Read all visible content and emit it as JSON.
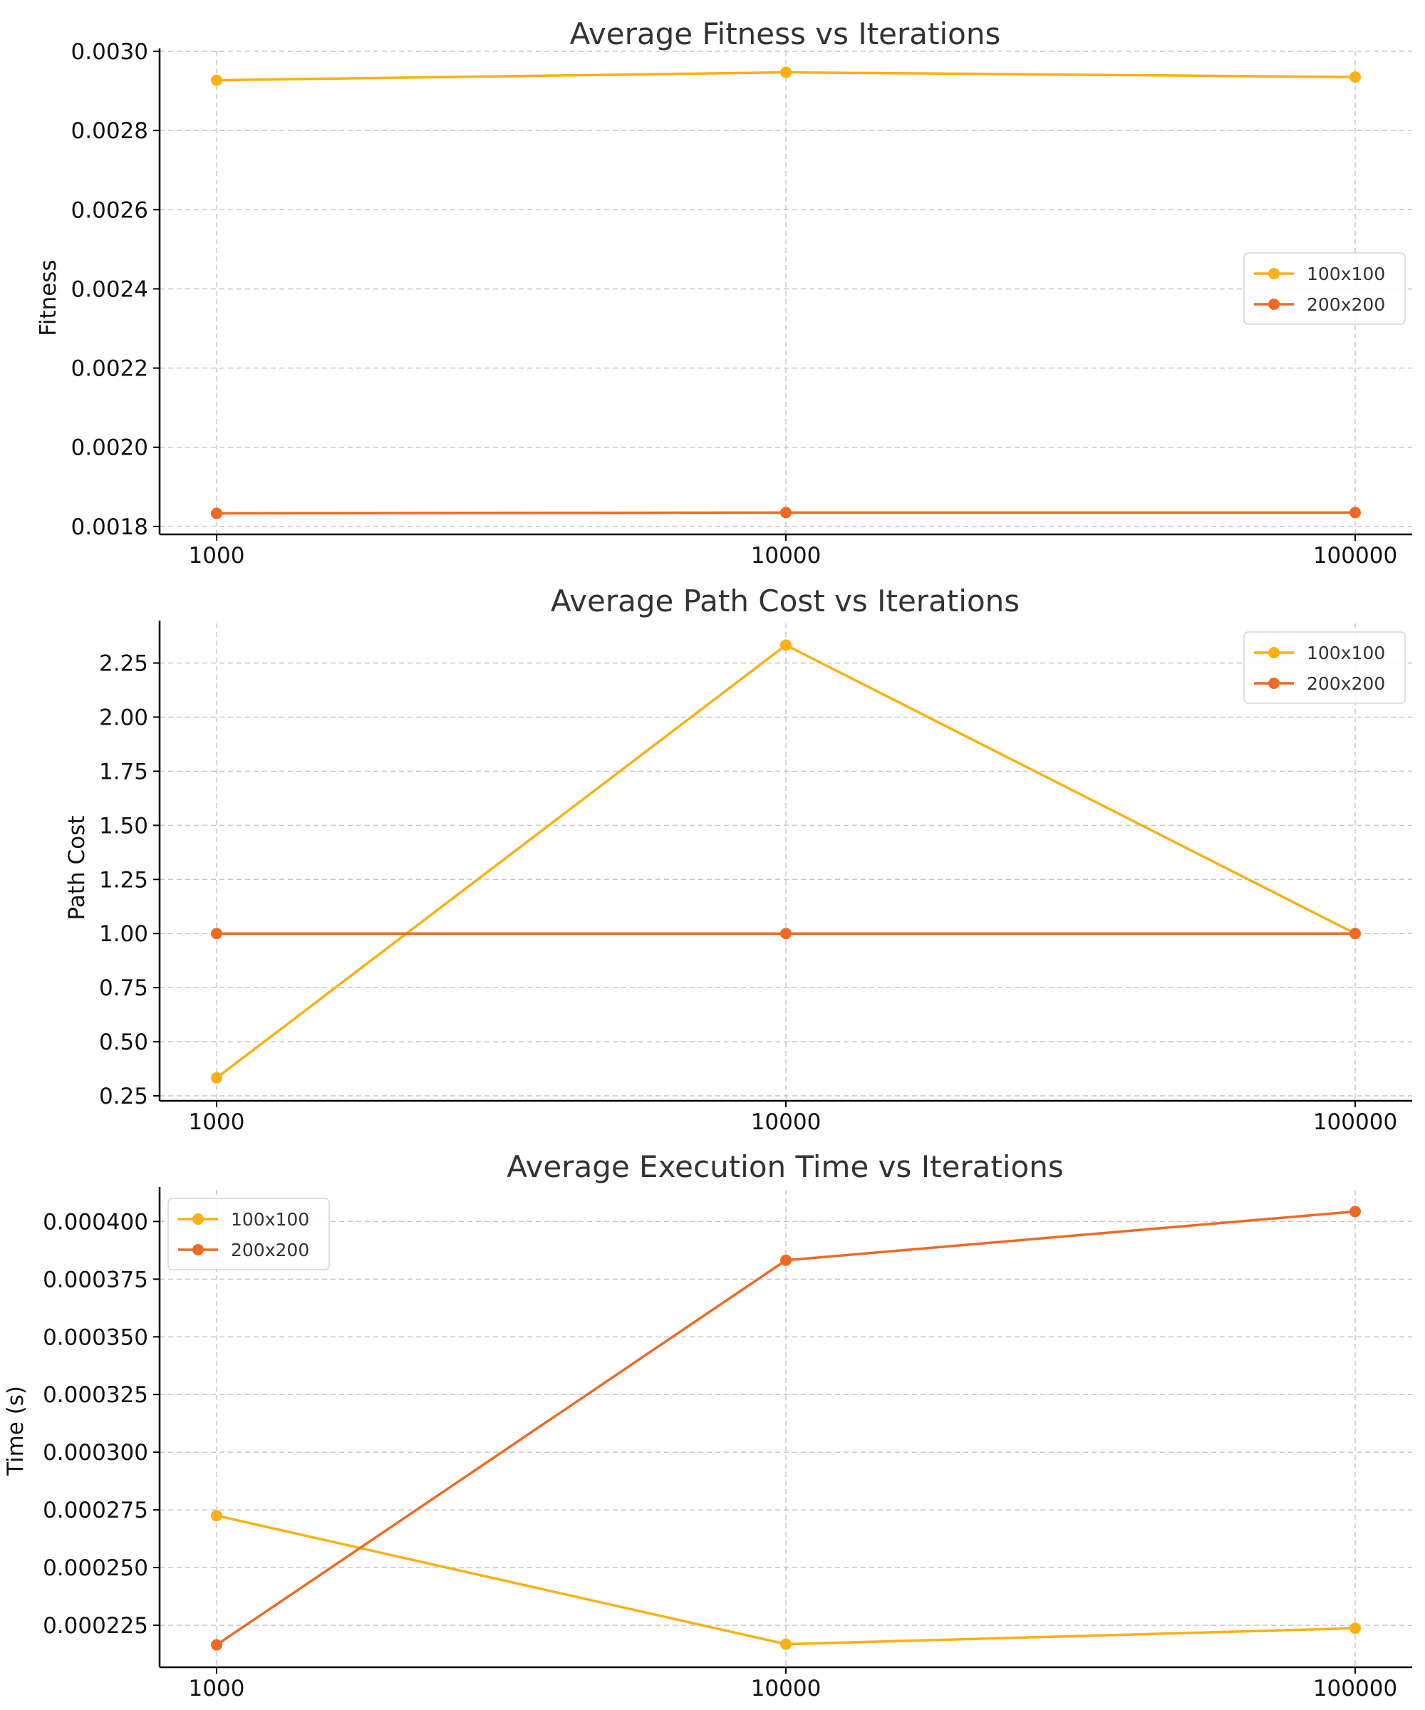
{
  "chart_data": [
    {
      "type": "line",
      "title": "Average Fitness vs Iterations",
      "xlabel": "",
      "ylabel": "Fitness",
      "x": [
        1000,
        10000,
        100000
      ],
      "x_tick_labels": [
        "1000",
        "10000",
        "100000"
      ],
      "x_scale": "log",
      "ylim": [
        0.00178,
        0.003
      ],
      "y_ticks": [
        0.0018,
        0.002,
        0.0022,
        0.0024,
        0.0026,
        0.0028,
        0.003
      ],
      "y_tick_labels": [
        "0.0018",
        "0.0020",
        "0.0022",
        "0.0024",
        "0.0026",
        "0.0028",
        "0.0030"
      ],
      "grid": true,
      "legend": "center-right",
      "series": [
        {
          "name": "100x100",
          "color": "#fbb013",
          "values": [
            0.002927,
            0.002947,
            0.002935
          ]
        },
        {
          "name": "200x200",
          "color": "#ee6a24",
          "values": [
            0.001833,
            0.001835,
            0.001835
          ]
        }
      ]
    },
    {
      "type": "line",
      "title": "Average Path Cost vs Iterations",
      "xlabel": "",
      "ylabel": "Path Cost",
      "x": [
        1000,
        10000,
        100000
      ],
      "x_tick_labels": [
        "1000",
        "10000",
        "100000"
      ],
      "x_scale": "log",
      "ylim": [
        0.227,
        2.433
      ],
      "y_ticks": [
        0.25,
        0.5,
        0.75,
        1.0,
        1.25,
        1.5,
        1.75,
        2.0,
        2.25
      ],
      "y_tick_labels": [
        "0.25",
        "0.50",
        "0.75",
        "1.00",
        "1.25",
        "1.50",
        "1.75",
        "2.00",
        "2.25"
      ],
      "grid": true,
      "legend": "top-right",
      "series": [
        {
          "name": "100x100",
          "color": "#fbb013",
          "values": [
            0.333,
            2.333,
            1.0
          ]
        },
        {
          "name": "200x200",
          "color": "#ee6a24",
          "values": [
            1.0,
            1.0,
            1.0
          ]
        }
      ]
    },
    {
      "type": "line",
      "title": "Average Execution Time vs Iterations",
      "xlabel": "",
      "ylabel": "Time (s)",
      "x": [
        1000,
        10000,
        100000
      ],
      "x_tick_labels": [
        "1000",
        "10000",
        "100000"
      ],
      "x_scale": "log",
      "ylim": [
        0.0002068,
        0.0004137
      ],
      "y_ticks": [
        0.000225,
        0.00025,
        0.000275,
        0.0003,
        0.000325,
        0.00035,
        0.000375,
        0.0004
      ],
      "y_tick_labels": [
        "0.000225",
        "0.000250",
        "0.000275",
        "0.000300",
        "0.000325",
        "0.000350",
        "0.000375",
        "0.000400"
      ],
      "grid": true,
      "legend": "top-left",
      "series": [
        {
          "name": "100x100",
          "color": "#fbb013",
          "values": [
            0.0002725,
            0.0002168,
            0.0002237
          ]
        },
        {
          "name": "200x200",
          "color": "#ee6a24",
          "values": [
            0.0002165,
            0.0003832,
            0.0004043
          ]
        }
      ]
    }
  ]
}
